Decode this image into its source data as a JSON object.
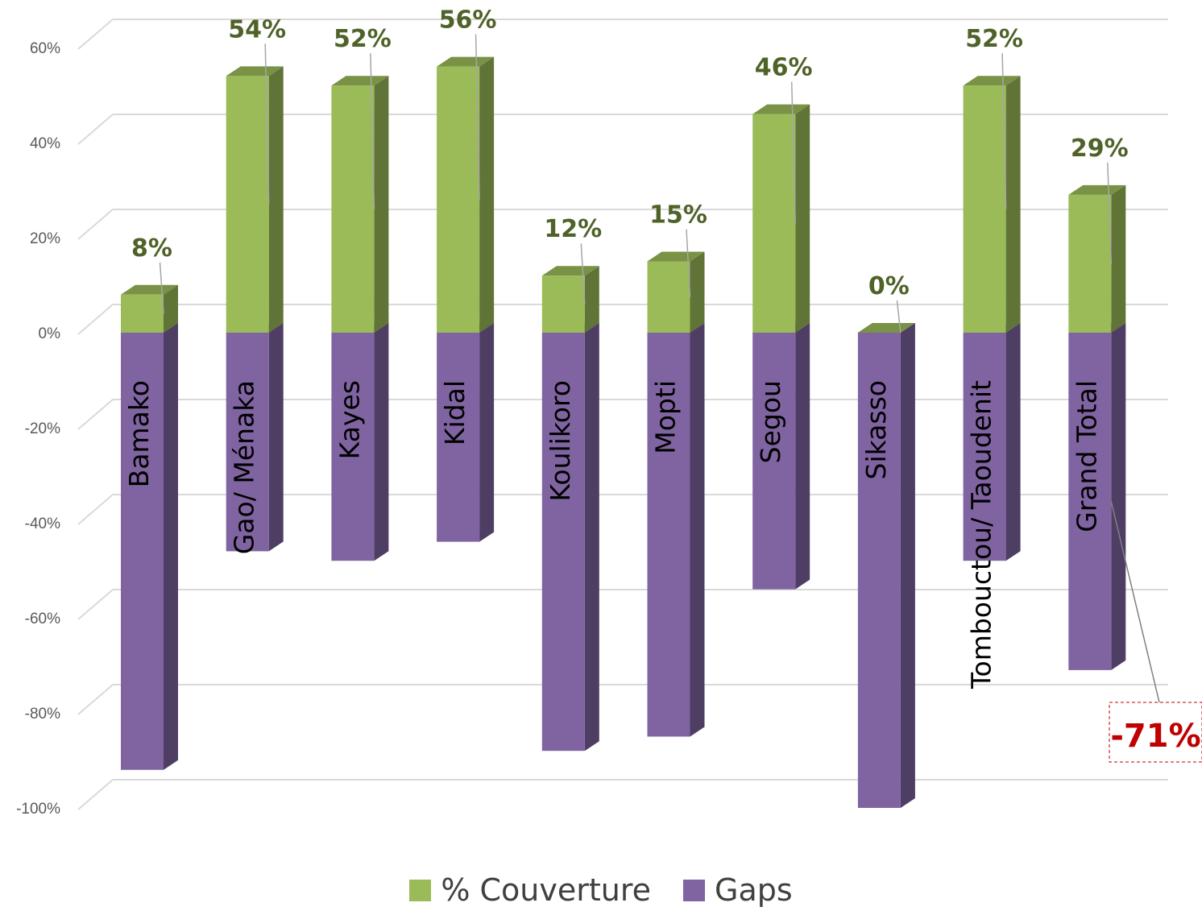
{
  "chart_data": {
    "type": "bar",
    "stacked": true,
    "three_d": true,
    "title": "",
    "xlabel": "",
    "ylabel": "",
    "ylim": [
      -100,
      60
    ],
    "y_ticks": [
      "60%",
      "40%",
      "20%",
      "0%",
      "-20%",
      "-40%",
      "-60%",
      "-80%",
      "-100%"
    ],
    "grid": true,
    "categories": [
      "Bamako",
      "Gao/ Ménaka",
      "Kayes",
      "Kidal",
      "Koulikoro",
      "Mopti",
      "Segou",
      "Sikasso",
      "Tombouctou/ Taoudenit",
      "Grand Total"
    ],
    "series": [
      {
        "name": "% Couverture",
        "color": "#9bbb59",
        "values": [
          8,
          54,
          52,
          56,
          12,
          15,
          46,
          0,
          52,
          29
        ],
        "labels": [
          "8%",
          "54%",
          "52%",
          "56%",
          "12%",
          "15%",
          "46%",
          "0%",
          "52%",
          "29%"
        ]
      },
      {
        "name": "Gaps",
        "color": "#8064a2",
        "values": [
          -92,
          -46,
          -48,
          -44,
          -88,
          -85,
          -54,
          -100,
          -48,
          -71
        ],
        "labels": [
          "",
          "",
          "",
          "",
          "",
          "",
          "",
          "",
          "",
          "-71%"
        ]
      }
    ],
    "legend_position": "bottom"
  },
  "legend": {
    "items": [
      {
        "label": "% Couverture",
        "color": "#9bbb59"
      },
      {
        "label": "Gaps",
        "color": "#8064a2"
      }
    ]
  }
}
